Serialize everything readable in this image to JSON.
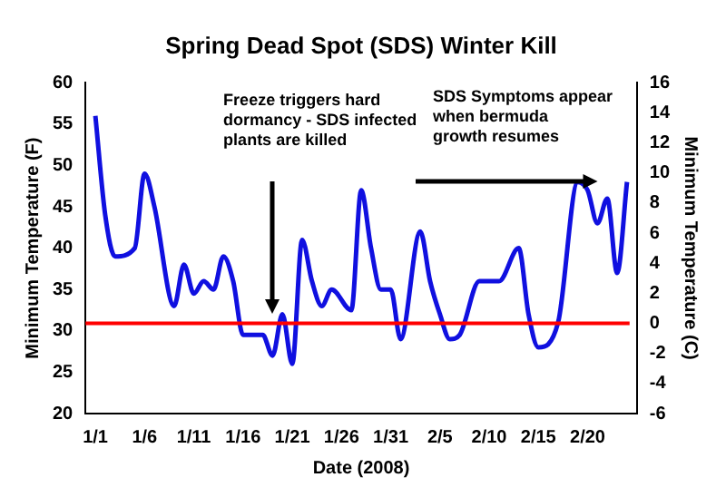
{
  "chart_data": {
    "type": "line",
    "title": "Spring Dead Spot (SDS) Winter Kill",
    "xlabel": "Date (2008)",
    "ylabel": "Minimum Temperature (F)",
    "y2label": "Minimum Temperature (C)",
    "annotations": [
      "Freeze triggers hard\ndormancy - SDS infected\nplants are killed",
      "SDS Symptoms appear\nwhen bermuda\ngrowth resumes"
    ],
    "x": [
      "2008-01-01",
      "2008-01-02",
      "2008-01-03",
      "2008-01-05",
      "2008-01-06",
      "2008-01-07",
      "2008-01-09",
      "2008-01-10",
      "2008-01-11",
      "2008-01-12",
      "2008-01-13",
      "2008-01-14",
      "2008-01-15",
      "2008-01-16",
      "2008-01-18",
      "2008-01-19",
      "2008-01-20",
      "2008-01-21",
      "2008-01-22",
      "2008-01-23",
      "2008-01-24",
      "2008-01-25",
      "2008-01-27",
      "2008-01-28",
      "2008-01-29",
      "2008-01-30",
      "2008-01-31",
      "2008-02-01",
      "2008-02-03",
      "2008-02-04",
      "2008-02-05",
      "2008-02-06",
      "2008-02-07",
      "2008-02-09",
      "2008-02-11",
      "2008-02-13",
      "2008-02-14",
      "2008-02-15",
      "2008-02-17",
      "2008-02-19",
      "2008-02-20",
      "2008-02-21",
      "2008-02-22",
      "2008-02-23",
      "2008-02-24"
    ],
    "series": [
      {
        "color": "#1010e0",
        "values": [
          56,
          44,
          39,
          40,
          49,
          45,
          33,
          38,
          34.5,
          36,
          35,
          39,
          36,
          29.5,
          29.5,
          27,
          32,
          26,
          41,
          36,
          33,
          35,
          32.5,
          47,
          40,
          35,
          35,
          29,
          42,
          36,
          32,
          29,
          29.5,
          36,
          36,
          40,
          32,
          28,
          31,
          48,
          47,
          43,
          46,
          37,
          48
        ]
      }
    ],
    "xlim": [
      "2007-12-31",
      "2008-02-25"
    ],
    "xticks": [
      {
        "value": "2008-01-01",
        "label": "1/1"
      },
      {
        "value": "2008-01-06",
        "label": "1/6"
      },
      {
        "value": "2008-01-11",
        "label": "1/11"
      },
      {
        "value": "2008-01-16",
        "label": "1/16"
      },
      {
        "value": "2008-01-21",
        "label": "1/21"
      },
      {
        "value": "2008-01-26",
        "label": "1/26"
      },
      {
        "value": "2008-01-31",
        "label": "1/31"
      },
      {
        "value": "2008-02-05",
        "label": "2/5"
      },
      {
        "value": "2008-02-10",
        "label": "2/10"
      },
      {
        "value": "2008-02-15",
        "label": "2/15"
      },
      {
        "value": "2008-02-20",
        "label": "2/20"
      }
    ],
    "ylim": [
      20,
      60
    ],
    "yticks": [
      20,
      25,
      30,
      35,
      40,
      45,
      50,
      55,
      60
    ],
    "y2lim": [
      -6,
      16
    ],
    "y2ticks": [
      -6,
      -4,
      -2,
      0,
      2,
      4,
      6,
      8,
      10,
      12,
      14,
      16
    ],
    "ref_lines": [
      {
        "axis": "y2",
        "value": 0,
        "color": "#ff0000"
      }
    ],
    "grid": false,
    "legend": false,
    "marker": "none",
    "line_style": "solid"
  }
}
